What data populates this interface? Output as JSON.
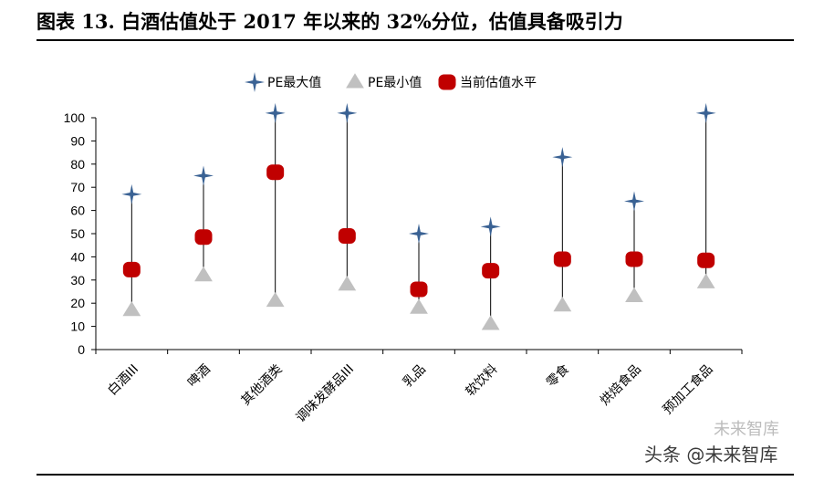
{
  "figure": {
    "title": "图表 13. 白酒估值处于 2017 年以来的 32%分位，估值具备吸引力"
  },
  "watermark": {
    "back_text": "未来智库",
    "front_text": "头条 @未来智库"
  },
  "chart_data": {
    "type": "scatter",
    "title": "",
    "xlabel": "",
    "ylabel": "",
    "categories": [
      "白酒III",
      "啤酒",
      "其他酒类",
      "调味发酵品III",
      "乳品",
      "软饮料",
      "零食",
      "烘焙食品",
      "预加工食品"
    ],
    "ylim": [
      0,
      100
    ],
    "yticks": [
      0,
      10,
      20,
      30,
      40,
      50,
      60,
      70,
      80,
      90,
      100
    ],
    "grid": false,
    "legend_position": "top-center",
    "series": [
      {
        "name": "PE最大值",
        "marker": "star4",
        "color": "#3a6294",
        "values": [
          67,
          75,
          102,
          102,
          50,
          53,
          83,
          64,
          102
        ]
      },
      {
        "name": "PE最小值",
        "marker": "triangle",
        "color": "#c0c0c0",
        "values": [
          17,
          32,
          21,
          28,
          18,
          11,
          19,
          23,
          29
        ]
      },
      {
        "name": "当前估值水平",
        "marker": "rounded-square",
        "color": "#c00000",
        "values": [
          34.5,
          48.5,
          76.5,
          49,
          26,
          34,
          39,
          39,
          38.5
        ]
      }
    ]
  }
}
